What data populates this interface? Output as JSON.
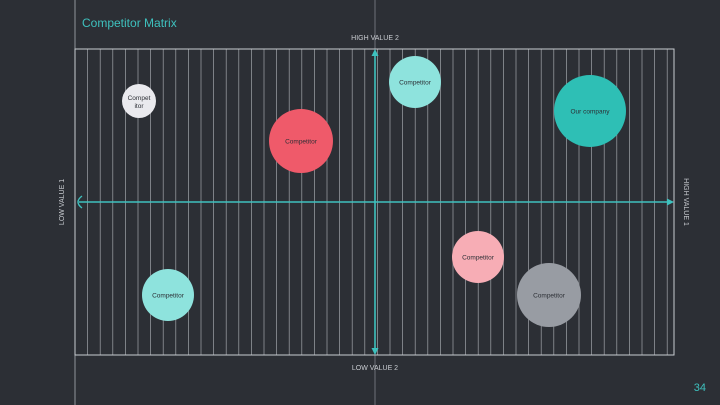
{
  "slide": {
    "title": "Competitor Matrix",
    "page_number": "34"
  },
  "axes": {
    "top_label": "HIGH VALUE 2",
    "bottom_label": "LOW VALUE 2",
    "left_label": "LOW VALUE 1",
    "right_label": "HIGH VALUE 1"
  },
  "colors": {
    "background": "#2c2f35",
    "accent": "#3ec1be",
    "grid": "#c9ccd1"
  },
  "bubbles": [
    {
      "id": "competitor-white",
      "lines": [
        "Compet",
        "itor"
      ],
      "color": "#eaeaee"
    },
    {
      "id": "competitor-red",
      "lines": [
        "Competitor"
      ],
      "color": "#ef5a6a"
    },
    {
      "id": "competitor-top-cyan",
      "lines": [
        "Competitor"
      ],
      "color": "#8ee3dd"
    },
    {
      "id": "our-company",
      "lines": [
        "Our company"
      ],
      "color": "#2ebfb5"
    },
    {
      "id": "competitor-pink",
      "lines": [
        "Competitor"
      ],
      "color": "#f7adb5"
    },
    {
      "id": "competitor-bottom-cyan",
      "lines": [
        "Competitor"
      ],
      "color": "#8ee3dd"
    },
    {
      "id": "competitor-gray",
      "lines": [
        "Competitor"
      ],
      "color": "#989ca3"
    }
  ]
}
